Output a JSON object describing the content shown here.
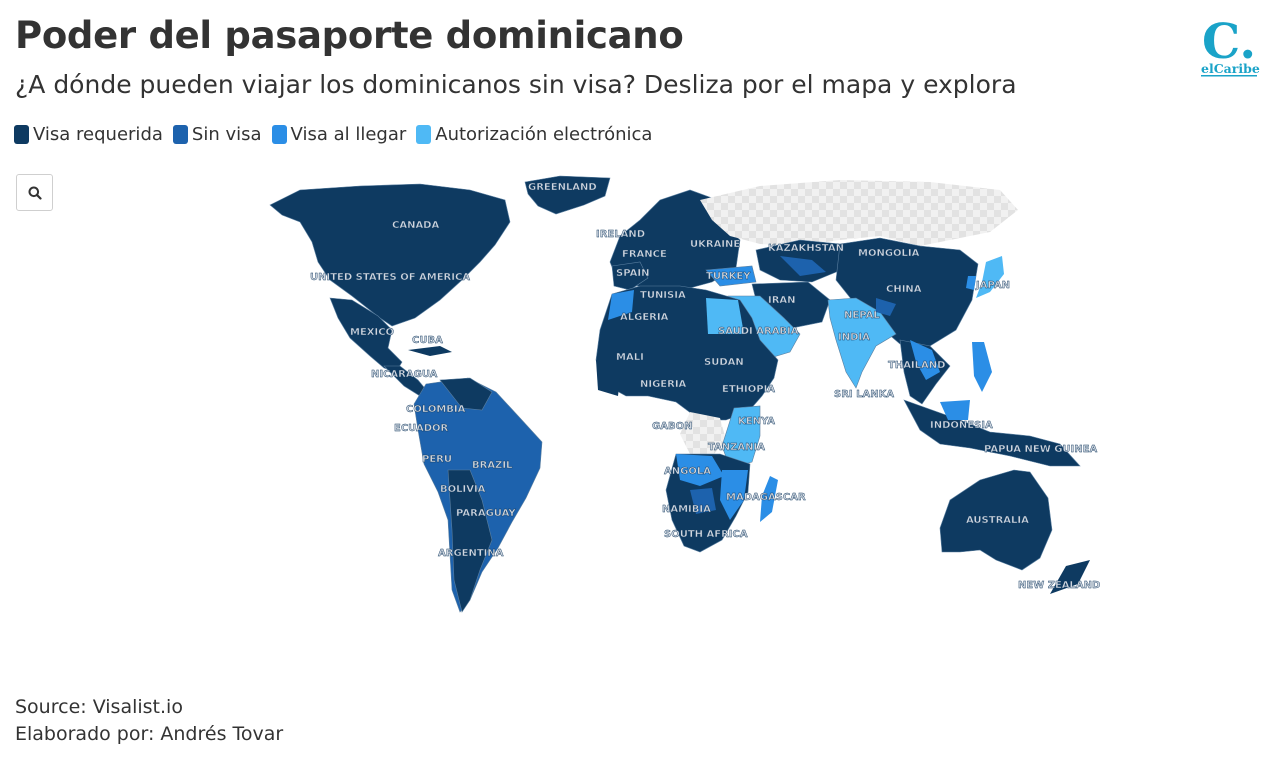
{
  "header": {
    "title": "Poder del pasaporte dominicano",
    "subtitle": "¿A dónde pueden viajar los dominicanos sin visa? Desliza por el mapa y explora"
  },
  "logo": {
    "mark": "C.",
    "wordmark": "elCaribe",
    "accent": "#1aa3c8"
  },
  "legend": {
    "items": [
      {
        "label": "Visa requerida",
        "color": "#0e3a61"
      },
      {
        "label": "Sin visa",
        "color": "#1d62ad"
      },
      {
        "label": "Visa al llegar",
        "color": "#2b8ee6"
      },
      {
        "label": "Autorización electrónica",
        "color": "#4fb9f5"
      }
    ]
  },
  "controls": {
    "search_icon": "search-icon"
  },
  "map": {
    "no_data_color": "#e2e2e2",
    "labels": {
      "greenland": "GREENLAND",
      "canada": "CANADA",
      "usa": "UNITED STATES OF AMERICA",
      "mexico": "MEXICO",
      "cuba": "CUBA",
      "nicaragua": "NICARAGUA",
      "colombia": "COLOMBIA",
      "ecuador": "ECUADOR",
      "peru": "PERU",
      "brazil": "BRAZIL",
      "bolivia": "BOLIVIA",
      "paraguay": "PARAGUAY",
      "argentina": "ARGENTINA",
      "ireland": "IRELAND",
      "france": "FRANCE",
      "spain": "SPAIN",
      "ukraine": "UKRAINE",
      "kazakhstan": "KAZAKHSTAN",
      "mongolia": "MONGOLIA",
      "turkey": "TURKEY",
      "tunisia": "TUNISIA",
      "algeria": "ALGERIA",
      "iran": "IRAN",
      "china": "CHINA",
      "japan": "JAPAN",
      "saudi": "SAUDI ARABIA",
      "nepal": "NEPAL",
      "india": "INDIA",
      "mali": "MALI",
      "sudan": "SUDAN",
      "nigeria": "NIGERIA",
      "ethiopia": "ETHIOPIA",
      "thailand": "THAILAND",
      "srilanka": "SRI LANKA",
      "gabon": "GABON",
      "kenya": "KENYA",
      "tanzania": "TANZANIA",
      "angola": "ANGOLA",
      "madagascar": "MADAGASCAR",
      "namibia": "NAMIBIA",
      "southafrica": "SOUTH AFRICA",
      "indonesia": "INDONESIA",
      "png": "PAPUA NEW GUINEA",
      "australia": "AUSTRALIA",
      "newzealand": "NEW ZEALAND"
    }
  },
  "footer": {
    "source": "Source: Visalist.io",
    "credit": "Elaborado por: Andrés Tovar"
  }
}
